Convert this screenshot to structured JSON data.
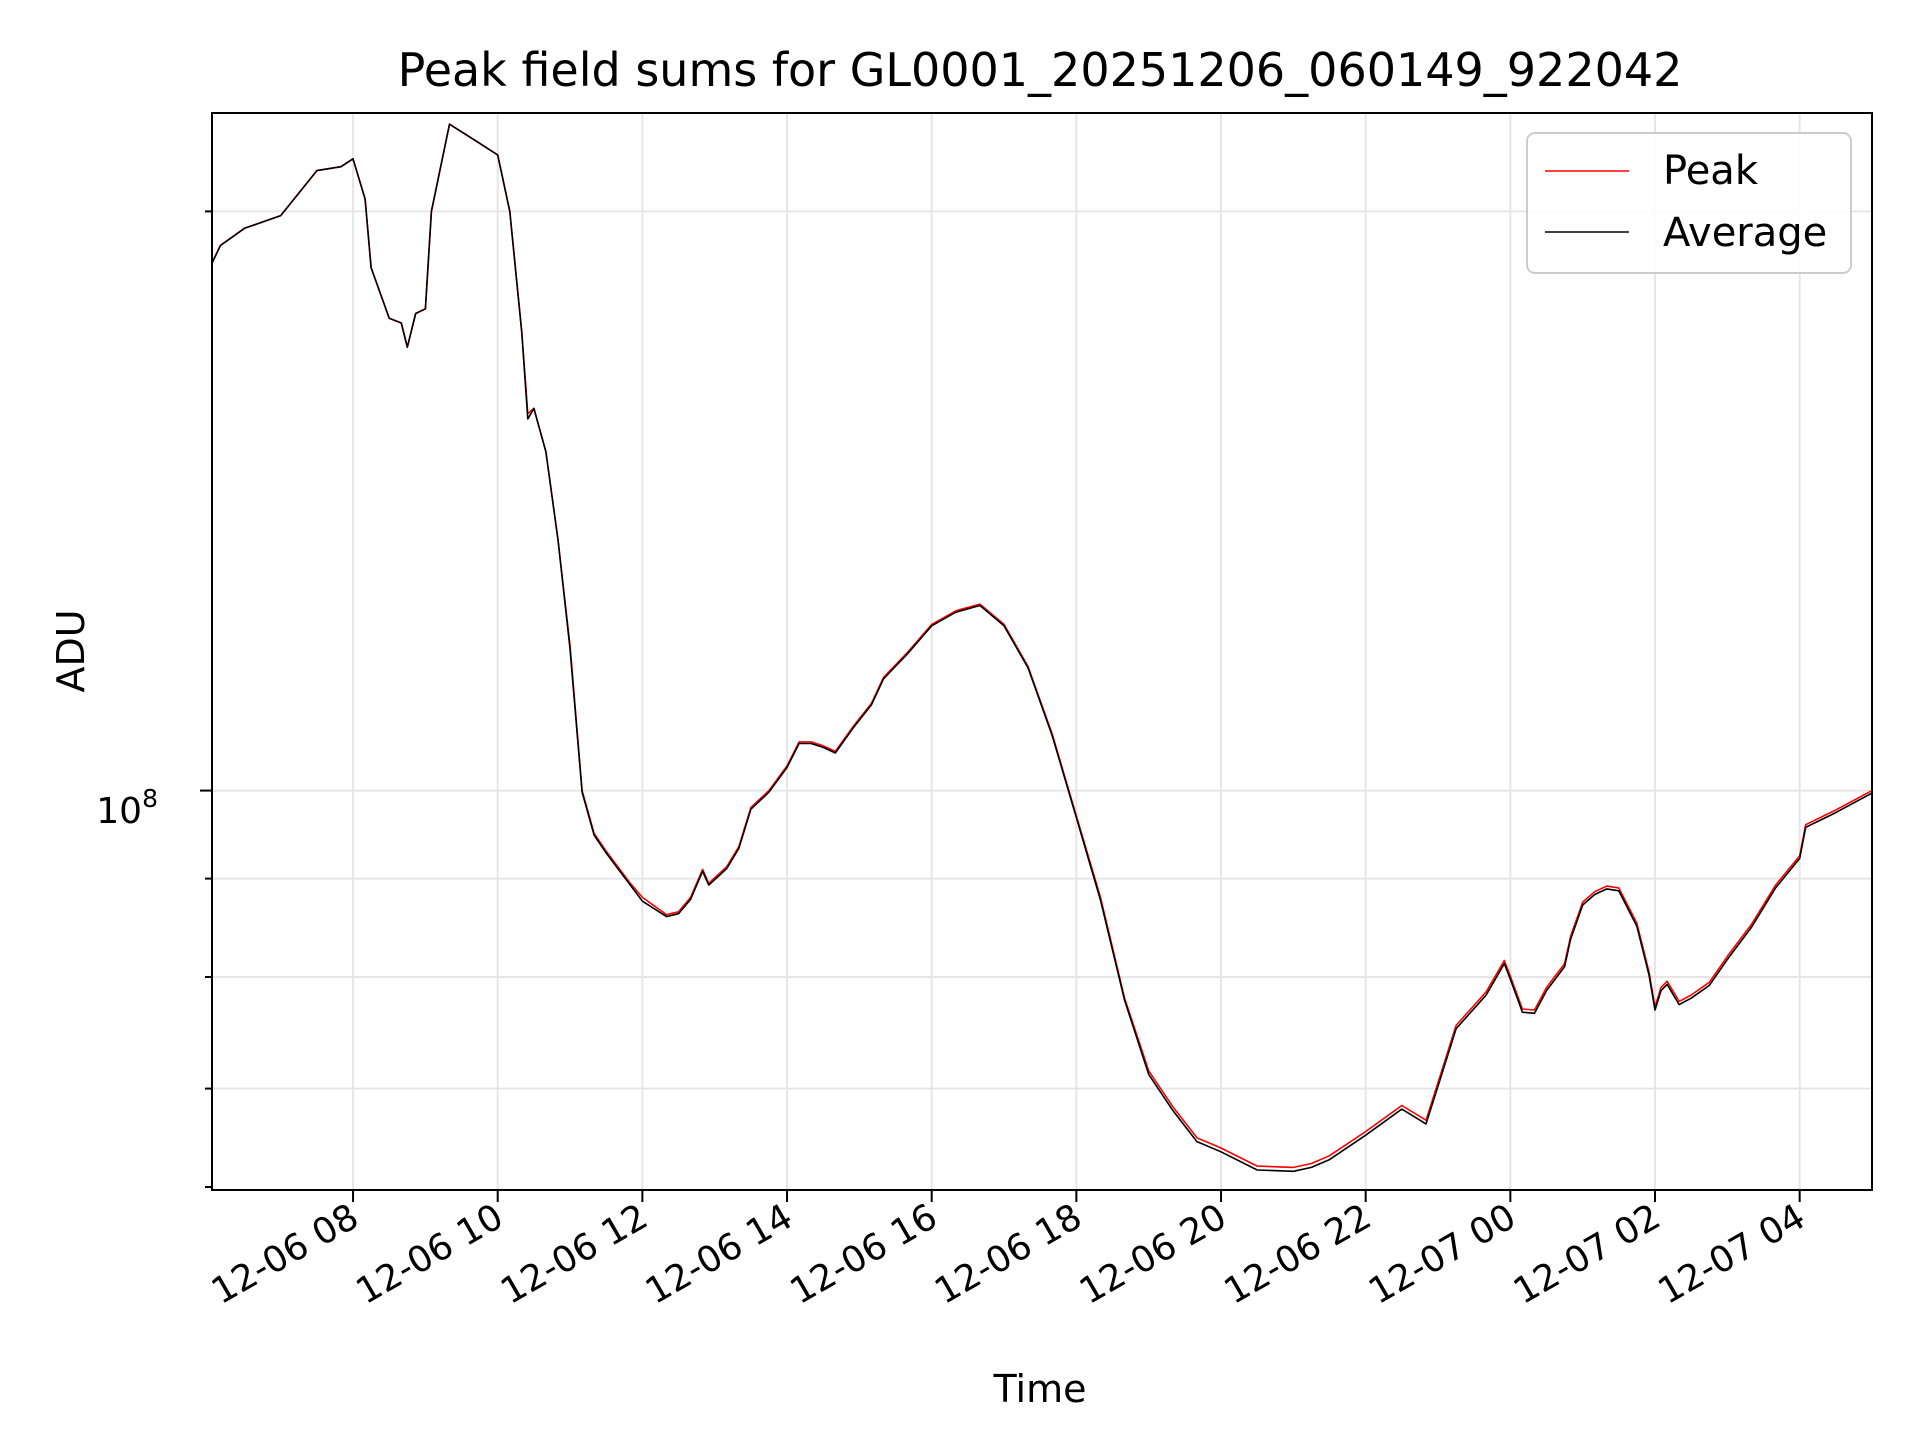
{
  "chart_data": {
    "type": "line",
    "title": "Peak field sums for GL0001_20251206_060149_922042",
    "xlabel": "Time",
    "ylabel": "ADU",
    "y_scale": "log",
    "y_tick_base": "10",
    "y_tick_exp": "8",
    "grid": true,
    "legend_position": "top-right",
    "x_ticks": [
      "12-06 08",
      "12-06 10",
      "12-06 12",
      "12-06 14",
      "12-06 16",
      "12-06 18",
      "12-06 20",
      "12-06 22",
      "12-07 00",
      "12-07 02",
      "12-07 04"
    ],
    "x_range": [
      "2025-12-06 06:03",
      "2025-12-07 05:00"
    ],
    "ylim": [
      62000000,
      225000000
    ],
    "series": [
      {
        "name": "Peak",
        "color": "#ff0000",
        "points": [
          [
            "2025-12-06 06:03",
            188000000
          ],
          [
            "2025-12-06 06:10",
            192000000
          ],
          [
            "2025-12-06 06:30",
            196000000
          ],
          [
            "2025-12-06 07:00",
            199000000
          ],
          [
            "2025-12-06 07:30",
            210000000
          ],
          [
            "2025-12-06 07:50",
            211000000
          ],
          [
            "2025-12-06 08:00",
            213000000
          ],
          [
            "2025-12-06 08:10",
            203000000
          ],
          [
            "2025-12-06 08:15",
            187000000
          ],
          [
            "2025-12-06 08:30",
            176000000
          ],
          [
            "2025-12-06 08:40",
            175000000
          ],
          [
            "2025-12-06 08:45",
            170000000
          ],
          [
            "2025-12-06 08:52",
            177000000
          ],
          [
            "2025-12-06 09:00",
            178000000
          ],
          [
            "2025-12-06 09:05",
            200000000
          ],
          [
            "2025-12-06 09:20",
            222000000
          ],
          [
            "2025-12-06 09:40",
            218000000
          ],
          [
            "2025-12-06 10:00",
            214000000
          ],
          [
            "2025-12-06 10:10",
            200000000
          ],
          [
            "2025-12-06 10:20",
            173000000
          ],
          [
            "2025-12-06 10:25",
            157000000
          ],
          [
            "2025-12-06 10:30",
            158000000
          ],
          [
            "2025-12-06 10:40",
            150000000
          ],
          [
            "2025-12-06 10:50",
            135000000
          ],
          [
            "2025-12-06 11:00",
            119000000
          ],
          [
            "2025-12-06 11:10",
            100000000
          ],
          [
            "2025-12-06 11:20",
            95000000
          ],
          [
            "2025-12-06 11:30",
            93000000
          ],
          [
            "2025-12-06 11:50",
            89500000
          ],
          [
            "2025-12-06 12:00",
            88000000
          ],
          [
            "2025-12-06 12:20",
            86200000
          ],
          [
            "2025-12-06 12:30",
            86500000
          ],
          [
            "2025-12-06 12:40",
            88000000
          ],
          [
            "2025-12-06 12:50",
            91000000
          ],
          [
            "2025-12-06 12:55",
            89500000
          ],
          [
            "2025-12-06 13:10",
            91300000
          ],
          [
            "2025-12-06 13:20",
            93500000
          ],
          [
            "2025-12-06 13:30",
            98000000
          ],
          [
            "2025-12-06 13:45",
            100000000
          ],
          [
            "2025-12-06 14:00",
            103000000
          ],
          [
            "2025-12-06 14:10",
            106000000
          ],
          [
            "2025-12-06 14:20",
            106000000
          ],
          [
            "2025-12-06 14:30",
            105500000
          ],
          [
            "2025-12-06 14:40",
            104800000
          ],
          [
            "2025-12-06 14:55",
            108000000
          ],
          [
            "2025-12-06 15:10",
            111000000
          ],
          [
            "2025-12-06 15:20",
            114500000
          ],
          [
            "2025-12-06 15:40",
            118000000
          ],
          [
            "2025-12-06 16:00",
            122000000
          ],
          [
            "2025-12-06 16:20",
            124000000
          ],
          [
            "2025-12-06 16:40",
            125000000
          ],
          [
            "2025-12-06 17:00",
            122000000
          ],
          [
            "2025-12-06 17:20",
            116000000
          ],
          [
            "2025-12-06 17:40",
            107000000
          ],
          [
            "2025-12-06 18:00",
            97000000
          ],
          [
            "2025-12-06 18:20",
            88000000
          ],
          [
            "2025-12-06 18:40",
            78000000
          ],
          [
            "2025-12-06 19:00",
            71500000
          ],
          [
            "2025-12-06 19:20",
            68500000
          ],
          [
            "2025-12-06 19:40",
            66000000
          ],
          [
            "2025-12-06 20:00",
            65200000
          ],
          [
            "2025-12-06 20:30",
            63800000
          ],
          [
            "2025-12-06 21:00",
            63700000
          ],
          [
            "2025-12-06 21:15",
            64000000
          ],
          [
            "2025-12-06 21:30",
            64600000
          ],
          [
            "2025-12-06 22:00",
            66500000
          ],
          [
            "2025-12-06 22:30",
            68600000
          ],
          [
            "2025-12-06 22:50",
            67400000
          ],
          [
            "2025-12-06 23:00",
            70500000
          ],
          [
            "2025-12-06 23:15",
            75500000
          ],
          [
            "2025-12-06 23:40",
            78600000
          ],
          [
            "2025-12-06 23:55",
            81600000
          ],
          [
            "2025-12-07 00:00",
            80100000
          ],
          [
            "2025-12-07 00:10",
            77000000
          ],
          [
            "2025-12-07 00:20",
            76900000
          ],
          [
            "2025-12-07 00:30",
            79000000
          ],
          [
            "2025-12-07 00:45",
            81300000
          ],
          [
            "2025-12-07 00:50",
            84000000
          ],
          [
            "2025-12-07 01:00",
            87500000
          ],
          [
            "2025-12-07 01:10",
            88600000
          ],
          [
            "2025-12-07 01:20",
            89200000
          ],
          [
            "2025-12-07 01:30",
            89000000
          ],
          [
            "2025-12-07 01:45",
            85300000
          ],
          [
            "2025-12-07 01:55",
            80500000
          ],
          [
            "2025-12-07 02:00",
            77200000
          ],
          [
            "2025-12-07 02:05",
            79000000
          ],
          [
            "2025-12-07 02:10",
            79600000
          ],
          [
            "2025-12-07 02:20",
            77700000
          ],
          [
            "2025-12-07 02:30",
            78300000
          ],
          [
            "2025-12-07 02:45",
            79500000
          ],
          [
            "2025-12-07 03:00",
            82000000
          ],
          [
            "2025-12-07 03:20",
            85200000
          ],
          [
            "2025-12-07 03:40",
            89300000
          ],
          [
            "2025-12-07 04:00",
            92500000
          ],
          [
            "2025-12-07 04:05",
            96000000
          ],
          [
            "2025-12-07 04:30",
            97700000
          ],
          [
            "2025-12-07 05:00",
            100000000
          ]
        ]
      },
      {
        "name": "Average",
        "color": "#000000",
        "points": [
          [
            "2025-12-06 06:03",
            188000000
          ],
          [
            "2025-12-06 06:10",
            192000000
          ],
          [
            "2025-12-06 06:30",
            196000000
          ],
          [
            "2025-12-06 07:00",
            199000000
          ],
          [
            "2025-12-06 07:30",
            210000000
          ],
          [
            "2025-12-06 07:50",
            211000000
          ],
          [
            "2025-12-06 08:00",
            213000000
          ],
          [
            "2025-12-06 08:10",
            203000000
          ],
          [
            "2025-12-06 08:15",
            187000000
          ],
          [
            "2025-12-06 08:30",
            176000000
          ],
          [
            "2025-12-06 08:40",
            175000000
          ],
          [
            "2025-12-06 08:45",
            170000000
          ],
          [
            "2025-12-06 08:52",
            177000000
          ],
          [
            "2025-12-06 09:00",
            178000000
          ],
          [
            "2025-12-06 09:05",
            200000000
          ],
          [
            "2025-12-06 09:20",
            222000000
          ],
          [
            "2025-12-06 09:40",
            218000000
          ],
          [
            "2025-12-06 10:00",
            214000000
          ],
          [
            "2025-12-06 10:10",
            200000000
          ],
          [
            "2025-12-06 10:20",
            173000000
          ],
          [
            "2025-12-06 10:25",
            156000000
          ],
          [
            "2025-12-06 10:30",
            158000000
          ],
          [
            "2025-12-06 10:40",
            150000000
          ],
          [
            "2025-12-06 10:50",
            135000000
          ],
          [
            "2025-12-06 11:00",
            118500000
          ],
          [
            "2025-12-06 11:10",
            99800000
          ],
          [
            "2025-12-06 11:20",
            94800000
          ],
          [
            "2025-12-06 11:30",
            92800000
          ],
          [
            "2025-12-06 11:50",
            89300000
          ],
          [
            "2025-12-06 12:00",
            87600000
          ],
          [
            "2025-12-06 12:20",
            86000000
          ],
          [
            "2025-12-06 12:30",
            86300000
          ],
          [
            "2025-12-06 12:40",
            87800000
          ],
          [
            "2025-12-06 12:50",
            90800000
          ],
          [
            "2025-12-06 12:55",
            89300000
          ],
          [
            "2025-12-06 13:10",
            91100000
          ],
          [
            "2025-12-06 13:20",
            93300000
          ],
          [
            "2025-12-06 13:30",
            97800000
          ],
          [
            "2025-12-06 13:45",
            99800000
          ],
          [
            "2025-12-06 14:00",
            102800000
          ],
          [
            "2025-12-06 14:10",
            105800000
          ],
          [
            "2025-12-06 14:20",
            105800000
          ],
          [
            "2025-12-06 14:30",
            105300000
          ],
          [
            "2025-12-06 14:40",
            104600000
          ],
          [
            "2025-12-06 14:55",
            107800000
          ],
          [
            "2025-12-06 15:10",
            110800000
          ],
          [
            "2025-12-06 15:20",
            114300000
          ],
          [
            "2025-12-06 15:40",
            117800000
          ],
          [
            "2025-12-06 16:00",
            121800000
          ],
          [
            "2025-12-06 16:20",
            123800000
          ],
          [
            "2025-12-06 16:40",
            124800000
          ],
          [
            "2025-12-06 17:00",
            121800000
          ],
          [
            "2025-12-06 17:20",
            115800000
          ],
          [
            "2025-12-06 17:40",
            106800000
          ],
          [
            "2025-12-06 18:00",
            96800000
          ],
          [
            "2025-12-06 18:20",
            87700000
          ],
          [
            "2025-12-06 18:40",
            77800000
          ],
          [
            "2025-12-06 19:00",
            71200000
          ],
          [
            "2025-12-06 19:20",
            68200000
          ],
          [
            "2025-12-06 19:40",
            65700000
          ],
          [
            "2025-12-06 20:00",
            64900000
          ],
          [
            "2025-12-06 20:30",
            63500000
          ],
          [
            "2025-12-06 21:00",
            63400000
          ],
          [
            "2025-12-06 21:15",
            63700000
          ],
          [
            "2025-12-06 21:30",
            64300000
          ],
          [
            "2025-12-06 22:00",
            66200000
          ],
          [
            "2025-12-06 22:30",
            68300000
          ],
          [
            "2025-12-06 22:50",
            67100000
          ],
          [
            "2025-12-06 23:00",
            70200000
          ],
          [
            "2025-12-06 23:15",
            75200000
          ],
          [
            "2025-12-06 23:40",
            78300000
          ],
          [
            "2025-12-06 23:55",
            81300000
          ],
          [
            "2025-12-07 00:00",
            79800000
          ],
          [
            "2025-12-07 00:10",
            76700000
          ],
          [
            "2025-12-07 00:20",
            76600000
          ],
          [
            "2025-12-07 00:30",
            78700000
          ],
          [
            "2025-12-07 00:45",
            81000000
          ],
          [
            "2025-12-07 00:50",
            83700000
          ],
          [
            "2025-12-07 01:00",
            87200000
          ],
          [
            "2025-12-07 01:10",
            88300000
          ],
          [
            "2025-12-07 01:20",
            88900000
          ],
          [
            "2025-12-07 01:30",
            88700000
          ],
          [
            "2025-12-07 01:45",
            85000000
          ],
          [
            "2025-12-07 01:55",
            80200000
          ],
          [
            "2025-12-07 02:00",
            76900000
          ],
          [
            "2025-12-07 02:05",
            78700000
          ],
          [
            "2025-12-07 02:10",
            79300000
          ],
          [
            "2025-12-07 02:20",
            77400000
          ],
          [
            "2025-12-07 02:30",
            78000000
          ],
          [
            "2025-12-07 02:45",
            79200000
          ],
          [
            "2025-12-07 03:00",
            81700000
          ],
          [
            "2025-12-07 03:20",
            84900000
          ],
          [
            "2025-12-07 03:40",
            89000000
          ],
          [
            "2025-12-07 04:00",
            92200000
          ],
          [
            "2025-12-07 04:05",
            95700000
          ],
          [
            "2025-12-07 04:30",
            97400000
          ],
          [
            "2025-12-07 05:00",
            99700000
          ]
        ]
      }
    ]
  }
}
